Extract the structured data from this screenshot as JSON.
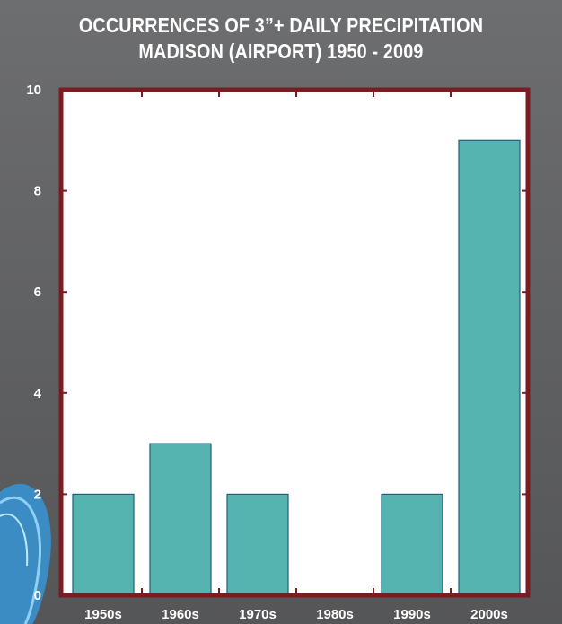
{
  "chart_data": {
    "type": "bar",
    "title": "OCCURRENCES OF 3”+ DAILY PRECIPITATION",
    "subtitle": "MADISON (AIRPORT) 1950 - 2009",
    "xlabel": "",
    "ylabel": "",
    "categories": [
      "1950s",
      "1960s",
      "1970s",
      "1980s",
      "1990s",
      "2000s"
    ],
    "values": [
      2,
      3,
      2,
      0,
      2,
      9
    ],
    "ylim": [
      0,
      10
    ],
    "yticks": [
      "0",
      "2",
      "4",
      "6",
      "8",
      "10"
    ],
    "grid": false,
    "legend": "none",
    "colors": {
      "bar": "#55b4b0",
      "bar_stroke": "#1f5f7a",
      "frame": "#7a1c22",
      "plot_bg": "#ffffff",
      "panel_bg": "#636466",
      "text": "#ffffff"
    }
  }
}
